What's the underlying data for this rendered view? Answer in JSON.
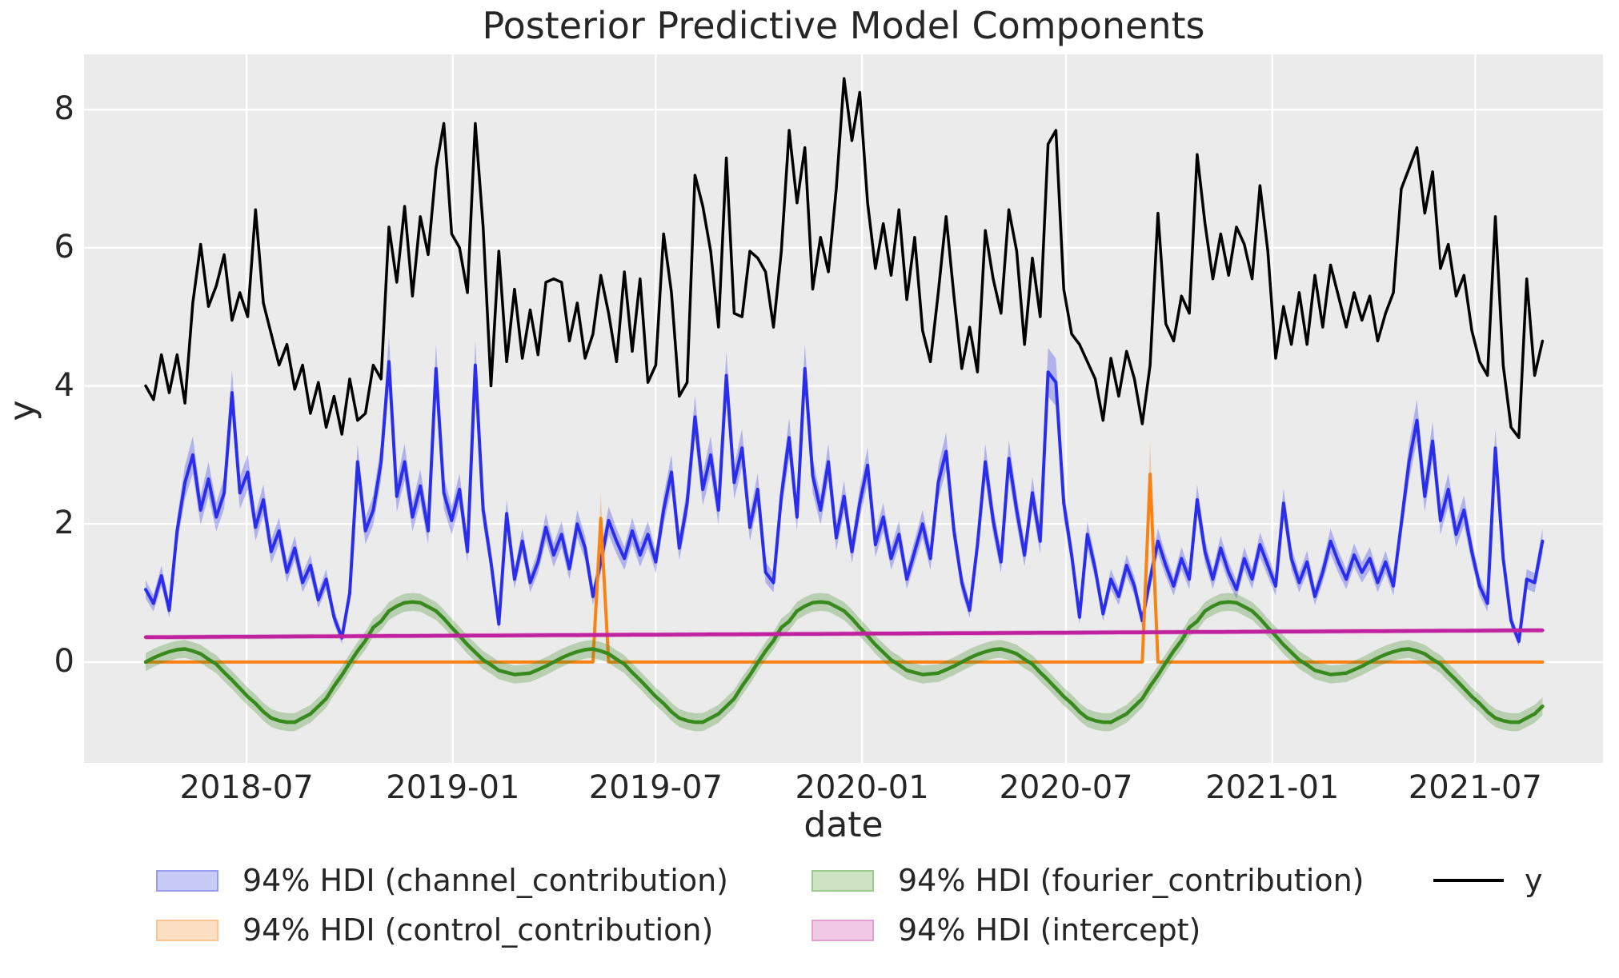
{
  "chart_data": {
    "type": "line",
    "title": "Posterior Predictive Model Components",
    "xlabel": "date",
    "ylabel": "y",
    "background_color": "#ebebeb",
    "grid_color": "#ffffff",
    "text_color": "#262626",
    "x_axis": {
      "start_date": "2018-04-02",
      "step_days": 7,
      "n_points": 179,
      "xlim_days": [
        -55,
        1300
      ],
      "tick_days": [
        90,
        274,
        455,
        639,
        821,
        1005,
        1186
      ],
      "tick_labels": [
        "2018-07",
        "2019-01",
        "2019-07",
        "2020-01",
        "2020-07",
        "2021-01",
        "2021-07"
      ]
    },
    "y_axis": {
      "ylim": [
        -1.46,
        8.8
      ],
      "ticks": [
        0,
        2,
        4,
        6,
        8
      ]
    },
    "series": [
      {
        "name": "channel_contribution",
        "legend_label": "94% HDI (channel_contribution)",
        "color": "#2a2eec",
        "band_alpha": 0.3,
        "hdi_halfwidth_rel": 0.07,
        "hdi_halfwidth_abs": 0.06,
        "line_width": 4,
        "values": [
          1.05,
          0.85,
          1.25,
          0.75,
          1.9,
          2.6,
          3.0,
          2.2,
          2.65,
          2.1,
          2.45,
          3.9,
          2.45,
          2.75,
          1.95,
          2.35,
          1.6,
          1.9,
          1.3,
          1.65,
          1.15,
          1.4,
          0.9,
          1.2,
          0.65,
          0.35,
          1.0,
          2.9,
          1.9,
          2.2,
          2.9,
          4.35,
          2.4,
          2.9,
          2.1,
          2.55,
          1.9,
          4.25,
          2.45,
          2.05,
          2.5,
          1.6,
          4.3,
          2.2,
          1.45,
          0.55,
          2.15,
          1.2,
          1.75,
          1.15,
          1.45,
          1.95,
          1.55,
          1.85,
          1.35,
          2.0,
          1.65,
          0.95,
          1.45,
          2.05,
          1.75,
          1.5,
          1.9,
          1.55,
          1.85,
          1.45,
          2.2,
          2.75,
          1.65,
          2.3,
          3.55,
          2.5,
          3.0,
          2.2,
          4.15,
          2.6,
          3.1,
          1.95,
          2.5,
          1.3,
          1.15,
          2.4,
          3.25,
          2.1,
          4.25,
          2.7,
          2.2,
          2.9,
          1.8,
          2.4,
          1.6,
          2.3,
          2.85,
          1.7,
          2.1,
          1.5,
          1.85,
          1.2,
          1.6,
          2.0,
          1.5,
          2.6,
          3.05,
          1.9,
          1.15,
          0.75,
          1.7,
          2.9,
          2.05,
          1.45,
          2.95,
          2.2,
          1.55,
          2.45,
          1.75,
          4.2,
          4.05,
          2.3,
          1.55,
          0.65,
          1.85,
          1.35,
          0.7,
          1.2,
          0.95,
          1.4,
          1.1,
          0.6,
          1.2,
          1.75,
          1.4,
          1.1,
          1.5,
          1.2,
          2.35,
          1.6,
          1.2,
          1.65,
          1.3,
          1.05,
          1.5,
          1.2,
          1.7,
          1.4,
          1.1,
          2.3,
          1.5,
          1.15,
          1.45,
          0.95,
          1.3,
          1.75,
          1.45,
          1.2,
          1.55,
          1.3,
          1.5,
          1.15,
          1.45,
          1.1,
          2.0,
          2.9,
          3.5,
          2.4,
          3.2,
          2.05,
          2.5,
          1.85,
          2.2,
          1.6,
          1.1,
          0.85,
          3.1,
          1.5,
          0.6,
          0.3,
          1.2,
          1.15,
          1.75
        ]
      },
      {
        "name": "control_contribution",
        "legend_label": "94% HDI (control_contribution)",
        "color": "#fa8114",
        "band_alpha": 0.3,
        "hdi_halfwidth_rel": 0.18,
        "hdi_halfwidth_abs": 0.0,
        "line_width": 4,
        "baseline": 0,
        "spikes": [
          {
            "index": 58,
            "date": "2019-05-13",
            "value": 2.08
          },
          {
            "index": 128,
            "date": "2020-09-14",
            "value": 2.72
          }
        ]
      },
      {
        "name": "fourier_contribution",
        "legend_label": "94% HDI (fourier_contribution)",
        "color": "#388a1e",
        "band_alpha": 0.28,
        "hdi_halfwidth_rel": 0.0,
        "hdi_halfwidth_abs": 0.13,
        "line_width": 4.5,
        "period": 52,
        "values_periodic": [
          0.0,
          0.06,
          0.11,
          0.15,
          0.18,
          0.19,
          0.16,
          0.12,
          0.04,
          -0.03,
          -0.15,
          -0.26,
          -0.38,
          -0.5,
          -0.6,
          -0.72,
          -0.81,
          -0.85,
          -0.87,
          -0.87,
          -0.81,
          -0.75,
          -0.64,
          -0.53,
          -0.35,
          -0.19,
          -0.01,
          0.16,
          0.31,
          0.5,
          0.59,
          0.74,
          0.81,
          0.86,
          0.87,
          0.86,
          0.8,
          0.74,
          0.63,
          0.5,
          0.38,
          0.25,
          0.14,
          0.03,
          -0.04,
          -0.12,
          -0.15,
          -0.18,
          -0.17,
          -0.16,
          -0.11,
          -0.06
        ]
      },
      {
        "name": "intercept",
        "legend_label": "94% HDI (intercept)",
        "color": "#c0219e",
        "band_alpha": 0.32,
        "hdi_halfwidth_rel": 0.0,
        "hdi_halfwidth_abs": 0.035,
        "line_width": 4.5,
        "linear_start": 0.36,
        "linear_end": 0.46
      },
      {
        "name": "y",
        "legend_label": "y",
        "color": "#000000",
        "kind": "line-only",
        "line_width": 3.5,
        "values": [
          4.0,
          3.8,
          4.45,
          3.9,
          4.45,
          3.75,
          5.2,
          6.05,
          5.15,
          5.45,
          5.9,
          4.95,
          5.35,
          5.0,
          6.55,
          5.2,
          4.75,
          4.3,
          4.6,
          3.95,
          4.3,
          3.6,
          4.05,
          3.4,
          3.85,
          3.3,
          4.1,
          3.5,
          3.6,
          4.3,
          4.1,
          6.3,
          5.5,
          6.6,
          5.3,
          6.45,
          5.9,
          7.15,
          7.8,
          6.2,
          6.0,
          5.35,
          7.8,
          6.3,
          4.0,
          5.95,
          4.35,
          5.4,
          4.4,
          5.1,
          4.45,
          5.5,
          5.55,
          5.5,
          4.65,
          5.2,
          4.4,
          4.75,
          5.6,
          5.05,
          4.35,
          5.65,
          4.5,
          5.55,
          4.05,
          4.3,
          6.2,
          5.35,
          3.85,
          4.05,
          7.05,
          6.6,
          5.95,
          4.85,
          7.3,
          5.05,
          5.0,
          5.95,
          5.85,
          5.65,
          4.85,
          5.95,
          7.7,
          6.65,
          7.45,
          5.4,
          6.15,
          5.65,
          6.85,
          8.45,
          7.55,
          8.25,
          6.65,
          5.7,
          6.35,
          5.6,
          6.55,
          5.25,
          6.15,
          4.8,
          4.35,
          5.35,
          6.45,
          5.3,
          4.25,
          4.85,
          4.2,
          6.25,
          5.55,
          5.05,
          6.55,
          5.95,
          4.6,
          5.85,
          5.0,
          7.5,
          7.7,
          5.4,
          4.75,
          4.6,
          4.35,
          4.1,
          3.5,
          4.4,
          3.85,
          4.5,
          4.1,
          3.45,
          4.3,
          6.5,
          4.9,
          4.65,
          5.3,
          5.05,
          7.35,
          6.35,
          5.55,
          6.2,
          5.6,
          6.3,
          6.05,
          5.55,
          6.9,
          5.95,
          4.4,
          5.15,
          4.6,
          5.35,
          4.6,
          5.6,
          4.85,
          5.75,
          5.3,
          4.85,
          5.35,
          4.95,
          5.3,
          4.65,
          5.05,
          5.35,
          6.85,
          7.15,
          7.45,
          6.5,
          7.1,
          5.7,
          6.05,
          5.3,
          5.6,
          4.8,
          4.35,
          4.15,
          6.45,
          4.3,
          3.4,
          3.25,
          5.55,
          4.15,
          4.65
        ]
      }
    ],
    "legend": {
      "position": "below-plot",
      "items": [
        {
          "label": "94% HDI (channel_contribution)",
          "kind": "patch",
          "face": "#c9cbf7",
          "edge": "#999df2",
          "col": 0,
          "row": 0
        },
        {
          "label": "94% HDI (control_contribution)",
          "kind": "patch",
          "face": "#fde0c4",
          "edge": "#fbc493",
          "col": 0,
          "row": 1
        },
        {
          "label": "94% HDI (fourier_contribution)",
          "kind": "patch",
          "face": "#cde3c4",
          "edge": "#9cca8e",
          "col": 1,
          "row": 0
        },
        {
          "label": "94% HDI (intercept)",
          "kind": "patch",
          "face": "#f1c8e6",
          "edge": "#e39fd0",
          "col": 1,
          "row": 1
        },
        {
          "label": "y",
          "kind": "line",
          "edge": "#000000",
          "col": 2,
          "row": 0
        }
      ]
    }
  }
}
